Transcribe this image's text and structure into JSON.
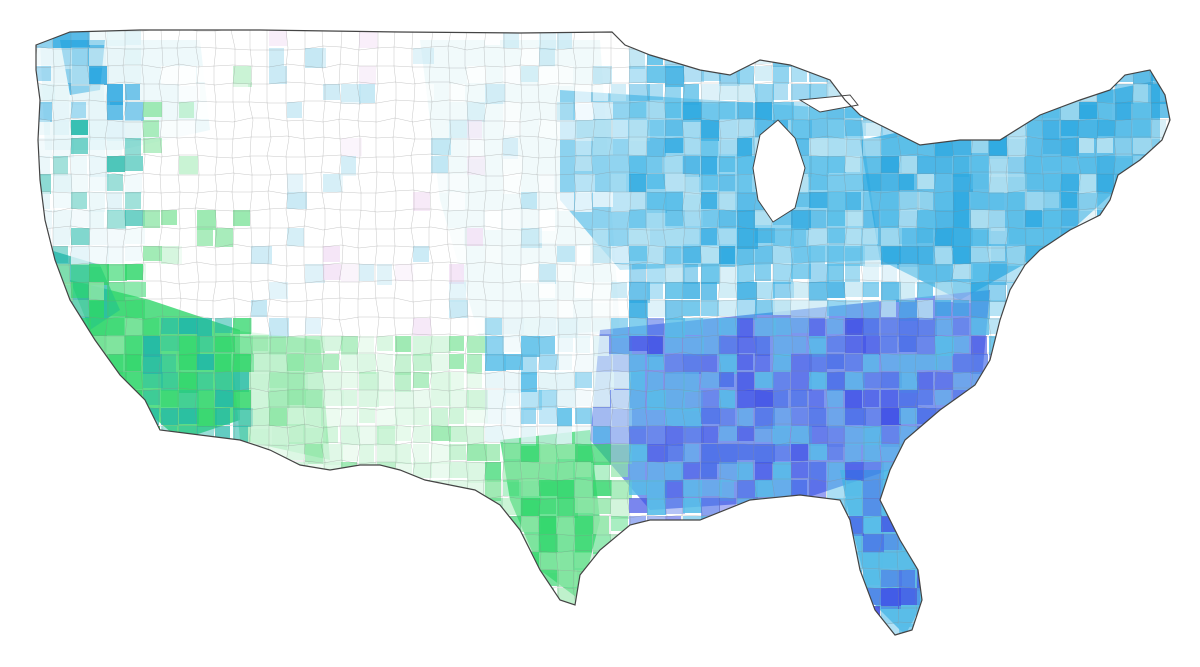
{
  "map": {
    "subject": "contiguous-united-states-county-map",
    "background_color": "#ffffff",
    "outline_color": "#444444",
    "county_border_color": "#888888",
    "palette": {
      "empty": "#ffffff",
      "pale_cyan": "#dff3f7",
      "light_blue": "#b9e3f2",
      "sky_blue": "#56bde8",
      "mid_blue": "#2aa7e0",
      "deep_blue": "#4b6fe8",
      "indigo": "#3f4fe6",
      "pale_green": "#d2f5dc",
      "light_green": "#8ee6a6",
      "bright_green": "#2fd66a",
      "teal": "#1fb7a8",
      "pale_pink": "#f3e1f5"
    },
    "regions": [
      {
        "id": "pacific-northwest",
        "dominant_color": "pale_cyan",
        "intensity": 0.35
      },
      {
        "id": "puget-sound",
        "dominant_color": "mid_blue",
        "intensity": 0.8
      },
      {
        "id": "california-south",
        "dominant_color": "bright_green",
        "intensity": 0.9
      },
      {
        "id": "california-bay",
        "dominant_color": "teal",
        "intensity": 0.8
      },
      {
        "id": "arizona",
        "dominant_color": "light_green",
        "intensity": 0.6
      },
      {
        "id": "texas-south",
        "dominant_color": "bright_green",
        "intensity": 0.7
      },
      {
        "id": "mountain-west",
        "dominant_color": "empty",
        "intensity": 0.1
      },
      {
        "id": "great-plains",
        "dominant_color": "pale_cyan",
        "intensity": 0.2
      },
      {
        "id": "upper-midwest",
        "dominant_color": "sky_blue",
        "intensity": 0.6
      },
      {
        "id": "northeast",
        "dominant_color": "mid_blue",
        "intensity": 0.75
      },
      {
        "id": "southeast",
        "dominant_color": "deep_blue",
        "intensity": 0.75
      },
      {
        "id": "florida",
        "dominant_color": "mid_blue",
        "intensity": 0.8
      }
    ]
  }
}
